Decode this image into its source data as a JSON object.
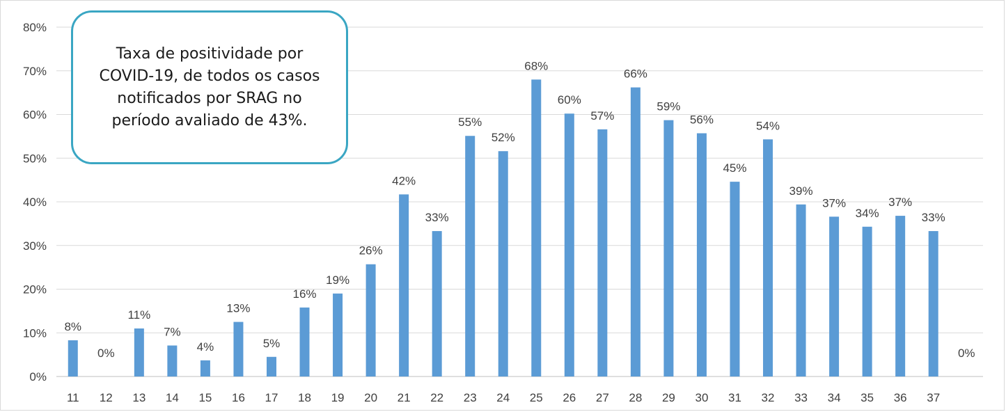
{
  "chart_data": {
    "type": "bar",
    "title": "",
    "xlabel": "",
    "ylabel": "",
    "categories": [
      "11",
      "12",
      "13",
      "14",
      "15",
      "16",
      "17",
      "18",
      "19",
      "20",
      "21",
      "22",
      "23",
      "24",
      "25",
      "26",
      "27",
      "28",
      "29",
      "30",
      "31",
      "32",
      "33",
      "34",
      "35",
      "36",
      "37",
      ""
    ],
    "values": [
      8.3,
      0,
      11,
      7.1,
      3.7,
      12.5,
      4.5,
      15.8,
      19,
      25.7,
      41.7,
      33.3,
      55.1,
      51.6,
      68,
      60.2,
      56.6,
      66.2,
      58.7,
      55.7,
      44.6,
      54.3,
      39.4,
      36.6,
      34.3,
      36.8,
      33.3,
      0
    ],
    "data_labels": [
      "8%",
      "0%",
      "11%",
      "7%",
      "4%",
      "13%",
      "5%",
      "16%",
      "19%",
      "26%",
      "42%",
      "33%",
      "55%",
      "52%",
      "68%",
      "60%",
      "57%",
      "66%",
      "59%",
      "56%",
      "45%",
      "54%",
      "39%",
      "37%",
      "34%",
      "37%",
      "33%",
      "0%"
    ],
    "y_ticks": [
      "0%",
      "10%",
      "20%",
      "30%",
      "40%",
      "50%",
      "60%",
      "70%",
      "80%"
    ],
    "ylim": [
      0,
      80
    ],
    "grid": true,
    "legend": "none",
    "bar_color": "#5b9bd5",
    "annotation": "Taxa de positividade por COVID-19, de todos os casos notificados por SRAG no período avaliado de 43%."
  }
}
